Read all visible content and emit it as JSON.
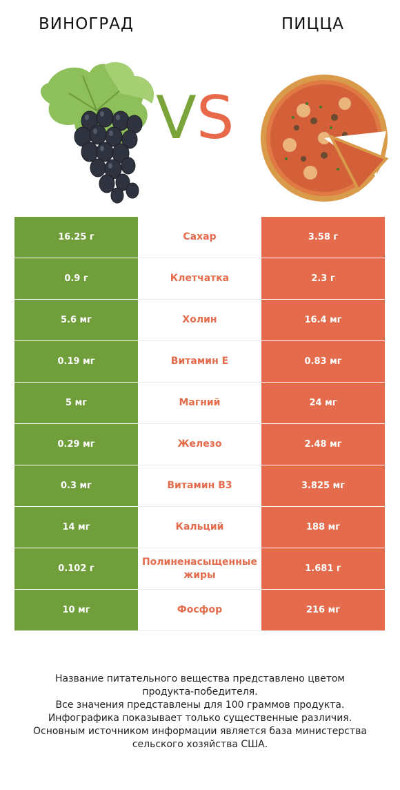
{
  "header": {
    "left_title": "ВИНОГРАД",
    "right_title": "ПИЦЦА",
    "vs_v": "V",
    "vs_s": "S"
  },
  "colors": {
    "left": "#6f9e3b",
    "right": "#e46b4b"
  },
  "icons": {
    "left_image": "grape-cluster-image",
    "right_image": "pizza-image"
  },
  "rows": [
    {
      "left": "16.25 г",
      "name": "Сахар",
      "right": "3.58 г"
    },
    {
      "left": "0.9 г",
      "name": "Клетчатка",
      "right": "2.3 г"
    },
    {
      "left": "5.6 мг",
      "name": "Холин",
      "right": "16.4 мг"
    },
    {
      "left": "0.19 мг",
      "name": "Витамин E",
      "right": "0.83 мг"
    },
    {
      "left": "5 мг",
      "name": "Магний",
      "right": "24 мг"
    },
    {
      "left": "0.29 мг",
      "name": "Железо",
      "right": "2.48 мг"
    },
    {
      "left": "0.3 мг",
      "name": "Витамин B3",
      "right": "3.825 мг"
    },
    {
      "left": "14 мг",
      "name": "Кальций",
      "right": "188 мг"
    },
    {
      "left": "0.102 г",
      "name": "Полиненасыщенные жиры",
      "right": "1.681 г"
    },
    {
      "left": "10 мг",
      "name": "Фосфор",
      "right": "216 мг"
    }
  ],
  "footer": {
    "line1": "Название питательного вещества представлено цветом",
    "line2": "продукта-победителя.",
    "line3": "Все значения представлены для 100 граммов продукта.",
    "line4": "Инфографика показывает только существенные различия.",
    "line5": "Основным источником информации является база министерства",
    "line6": "сельского хозяйства США."
  }
}
